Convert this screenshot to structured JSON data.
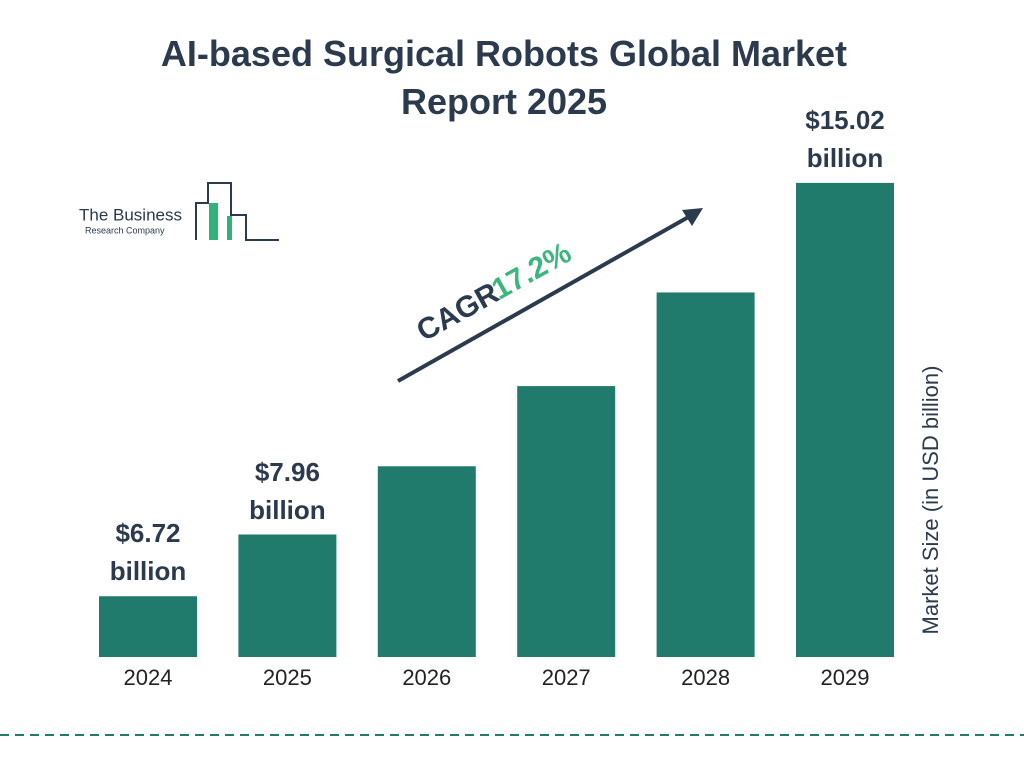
{
  "chart_data": {
    "type": "bar",
    "title": "AI-based Surgical Robots Global Market Report 2025",
    "categories": [
      "2024",
      "2025",
      "2026",
      "2027",
      "2028",
      "2029"
    ],
    "values": [
      6.72,
      7.96,
      9.33,
      10.94,
      12.82,
      15.02
    ],
    "value_labels": [
      "$6.72 billion",
      "$7.96 billion",
      null,
      null,
      null,
      "$15.02 billion"
    ],
    "color": "#217b6c",
    "ylim": [
      5.5,
      15.5
    ],
    "y_label": "Market Size (in USD billion)",
    "annotation": {
      "label": "CAGR",
      "value": "17.2%"
    },
    "logo": {
      "line1": "The Business",
      "line2": "Research Company"
    }
  }
}
